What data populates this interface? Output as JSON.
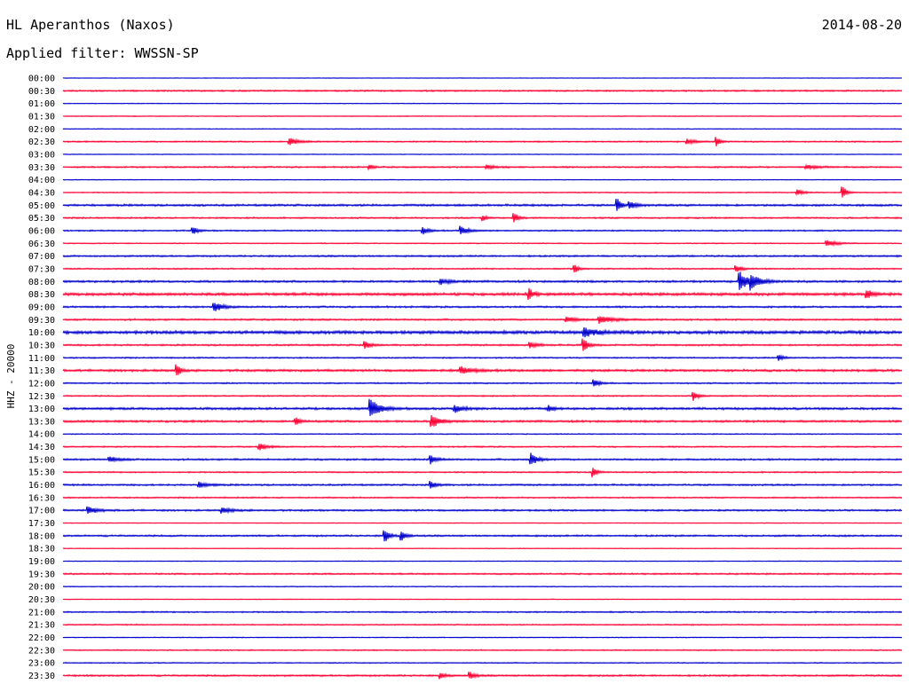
{
  "header": {
    "station": "HL Aperanthos (Naxos)",
    "date": "2014-08-20",
    "filter": "Applied filter: WWSSN-SP"
  },
  "chart_data": {
    "type": "line",
    "channel_label": "HHZ - 20000",
    "colors": [
      "#0000cc",
      "#ff0033"
    ],
    "rows": [
      {
        "label": "00:00",
        "noise": 0.3,
        "events": []
      },
      {
        "label": "00:30",
        "noise": 0.9,
        "events": []
      },
      {
        "label": "01:00",
        "noise": 0.4,
        "events": []
      },
      {
        "label": "01:30",
        "noise": 0.5,
        "events": []
      },
      {
        "label": "02:00",
        "noise": 0.4,
        "events": []
      },
      {
        "label": "02:30",
        "noise": 0.8,
        "events": [
          {
            "t": 0.27,
            "a": 4,
            "w": 0.01
          },
          {
            "t": 0.744,
            "a": 3,
            "w": 0.008
          },
          {
            "t": 0.779,
            "a": 5,
            "w": 0.004
          }
        ]
      },
      {
        "label": "03:00",
        "noise": 0.4,
        "events": []
      },
      {
        "label": "03:30",
        "noise": 0.9,
        "events": [
          {
            "t": 0.366,
            "a": 2,
            "w": 0.004
          },
          {
            "t": 0.505,
            "a": 2,
            "w": 0.01
          },
          {
            "t": 0.886,
            "a": 2,
            "w": 0.012
          }
        ]
      },
      {
        "label": "04:00",
        "noise": 0.4,
        "events": []
      },
      {
        "label": "04:30",
        "noise": 0.6,
        "events": [
          {
            "t": 0.876,
            "a": 3,
            "w": 0.006
          },
          {
            "t": 0.93,
            "a": 7,
            "w": 0.004
          }
        ]
      },
      {
        "label": "05:00",
        "noise": 1.2,
        "events": [
          {
            "t": 0.661,
            "a": 7,
            "w": 0.004
          },
          {
            "t": 0.676,
            "a": 4,
            "w": 0.006
          }
        ]
      },
      {
        "label": "05:30",
        "noise": 0.9,
        "events": [
          {
            "t": 0.501,
            "a": 3,
            "w": 0.004
          },
          {
            "t": 0.538,
            "a": 6,
            "w": 0.004
          }
        ]
      },
      {
        "label": "06:00",
        "noise": 0.8,
        "events": [
          {
            "t": 0.155,
            "a": 4,
            "w": 0.005
          },
          {
            "t": 0.429,
            "a": 4,
            "w": 0.006
          },
          {
            "t": 0.474,
            "a": 5,
            "w": 0.008
          }
        ]
      },
      {
        "label": "06:30",
        "noise": 0.6,
        "events": [
          {
            "t": 0.91,
            "a": 4,
            "w": 0.01
          }
        ]
      },
      {
        "label": "07:00",
        "noise": 1.0,
        "events": []
      },
      {
        "label": "07:30",
        "noise": 0.8,
        "events": [
          {
            "t": 0.61,
            "a": 5,
            "w": 0.004
          },
          {
            "t": 0.802,
            "a": 4,
            "w": 0.006
          }
        ]
      },
      {
        "label": "08:00",
        "noise": 1.2,
        "events": [
          {
            "t": 0.807,
            "a": 11,
            "w": 0.008
          },
          {
            "t": 0.82,
            "a": 8,
            "w": 0.01
          },
          {
            "t": 0.45,
            "a": 3,
            "w": 0.01
          }
        ]
      },
      {
        "label": "08:30",
        "noise": 1.6,
        "events": [
          {
            "t": 0.556,
            "a": 7,
            "w": 0.004
          },
          {
            "t": 0.958,
            "a": 6,
            "w": 0.005
          }
        ]
      },
      {
        "label": "09:00",
        "noise": 1.0,
        "events": [
          {
            "t": 0.18,
            "a": 6,
            "w": 0.008
          }
        ]
      },
      {
        "label": "09:30",
        "noise": 1.0,
        "events": [
          {
            "t": 0.6,
            "a": 3,
            "w": 0.01
          },
          {
            "t": 0.64,
            "a": 4,
            "w": 0.015
          }
        ]
      },
      {
        "label": "10:00",
        "noise": 1.8,
        "events": [
          {
            "t": 0.622,
            "a": 5,
            "w": 0.012
          }
        ]
      },
      {
        "label": "10:30",
        "noise": 1.0,
        "events": [
          {
            "t": 0.36,
            "a": 5,
            "w": 0.005
          },
          {
            "t": 0.557,
            "a": 3,
            "w": 0.008
          },
          {
            "t": 0.62,
            "a": 8,
            "w": 0.005
          }
        ]
      },
      {
        "label": "11:00",
        "noise": 0.8,
        "events": [
          {
            "t": 0.853,
            "a": 3,
            "w": 0.006
          }
        ]
      },
      {
        "label": "11:30",
        "noise": 1.3,
        "events": [
          {
            "t": 0.136,
            "a": 7,
            "w": 0.004
          },
          {
            "t": 0.475,
            "a": 4,
            "w": 0.012
          }
        ]
      },
      {
        "label": "12:00",
        "noise": 0.8,
        "events": [
          {
            "t": 0.633,
            "a": 4,
            "w": 0.006
          }
        ]
      },
      {
        "label": "12:30",
        "noise": 0.8,
        "events": [
          {
            "t": 0.752,
            "a": 5,
            "w": 0.005
          }
        ]
      },
      {
        "label": "13:00",
        "noise": 1.3,
        "events": [
          {
            "t": 0.367,
            "a": 10,
            "w": 0.01
          },
          {
            "t": 0.467,
            "a": 4,
            "w": 0.008
          },
          {
            "t": 0.579,
            "a": 4,
            "w": 0.005
          }
        ]
      },
      {
        "label": "13:30",
        "noise": 1.2,
        "events": [
          {
            "t": 0.278,
            "a": 4,
            "w": 0.004
          },
          {
            "t": 0.44,
            "a": 8,
            "w": 0.008
          }
        ]
      },
      {
        "label": "14:00",
        "noise": 0.6,
        "events": []
      },
      {
        "label": "14:30",
        "noise": 0.8,
        "events": [
          {
            "t": 0.234,
            "a": 4,
            "w": 0.008
          }
        ]
      },
      {
        "label": "15:00",
        "noise": 1.0,
        "events": [
          {
            "t": 0.055,
            "a": 3,
            "w": 0.01
          },
          {
            "t": 0.438,
            "a": 5,
            "w": 0.006
          },
          {
            "t": 0.558,
            "a": 8,
            "w": 0.006
          }
        ]
      },
      {
        "label": "15:30",
        "noise": 0.8,
        "events": [
          {
            "t": 0.632,
            "a": 6,
            "w": 0.004
          }
        ]
      },
      {
        "label": "16:00",
        "noise": 1.0,
        "events": [
          {
            "t": 0.162,
            "a": 3,
            "w": 0.01
          },
          {
            "t": 0.438,
            "a": 4,
            "w": 0.006
          }
        ]
      },
      {
        "label": "16:30",
        "noise": 0.8,
        "events": []
      },
      {
        "label": "17:00",
        "noise": 1.0,
        "events": [
          {
            "t": 0.03,
            "a": 4,
            "w": 0.01
          },
          {
            "t": 0.19,
            "a": 3,
            "w": 0.01
          }
        ]
      },
      {
        "label": "17:30",
        "noise": 0.4,
        "events": []
      },
      {
        "label": "18:00",
        "noise": 1.0,
        "events": [
          {
            "t": 0.383,
            "a": 8,
            "w": 0.005
          },
          {
            "t": 0.404,
            "a": 5,
            "w": 0.005
          }
        ]
      },
      {
        "label": "18:30",
        "noise": 0.4,
        "events": []
      },
      {
        "label": "19:00",
        "noise": 0.4,
        "events": []
      },
      {
        "label": "19:30",
        "noise": 0.9,
        "events": []
      },
      {
        "label": "20:00",
        "noise": 0.5,
        "events": []
      },
      {
        "label": "20:30",
        "noise": 0.4,
        "events": []
      },
      {
        "label": "21:00",
        "noise": 0.8,
        "events": []
      },
      {
        "label": "21:30",
        "noise": 0.7,
        "events": []
      },
      {
        "label": "22:00",
        "noise": 0.5,
        "events": []
      },
      {
        "label": "22:30",
        "noise": 0.7,
        "events": []
      },
      {
        "label": "23:00",
        "noise": 0.6,
        "events": []
      },
      {
        "label": "23:30",
        "noise": 1.0,
        "events": [
          {
            "t": 0.45,
            "a": 3,
            "w": 0.006
          },
          {
            "t": 0.485,
            "a": 4,
            "w": 0.005
          }
        ]
      }
    ]
  }
}
